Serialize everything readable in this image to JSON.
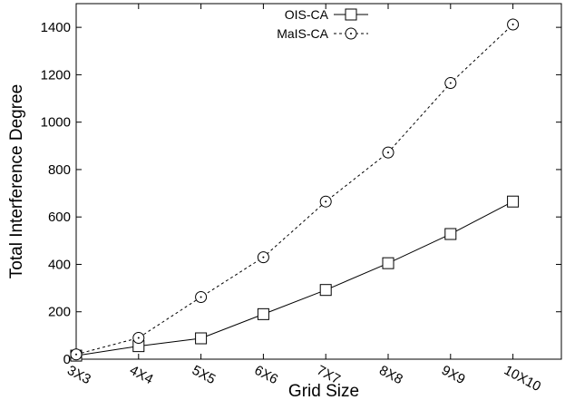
{
  "chart_data": {
    "type": "line",
    "title": "",
    "xlabel": "Grid Size",
    "ylabel": "Total Interference Degree",
    "categories": [
      "3X3",
      "4X4",
      "5X5",
      "6X6",
      "7X7",
      "8X8",
      "9X9",
      "10X10"
    ],
    "ylim": [
      0,
      1500
    ],
    "yticks": [
      0,
      200,
      400,
      600,
      800,
      1000,
      1200,
      1400
    ],
    "grid": false,
    "legend_position": "top-center",
    "series": [
      {
        "name": "OIS-CA",
        "marker": "square",
        "line_style": "solid",
        "color": "#000000",
        "values": [
          15,
          55,
          88,
          190,
          292,
          405,
          528,
          665
        ]
      },
      {
        "name": "MaIS-CA",
        "marker": "circle",
        "line_style": "dashed",
        "color": "#000000",
        "values": [
          20,
          90,
          262,
          430,
          665,
          872,
          1165,
          1412
        ]
      }
    ]
  }
}
